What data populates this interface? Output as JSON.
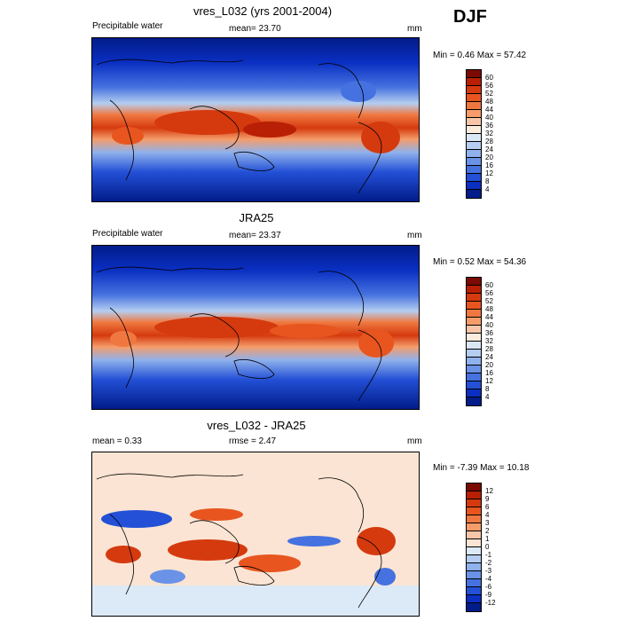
{
  "season": "DJF",
  "panels": [
    {
      "title": "vres_L032 (yrs 2001-2004)",
      "left_label": "Precipitable water",
      "center_label": "mean=  23.70",
      "units": "mm",
      "minmax": "Min =   0.46 Max =  57.42",
      "colorbar": {
        "labels": [
          "60",
          "56",
          "52",
          "48",
          "44",
          "40",
          "36",
          "32",
          "28",
          "24",
          "20",
          "16",
          "12",
          "8",
          "4"
        ],
        "colors": [
          "#7a0a02",
          "#b81f05",
          "#d53a0e",
          "#e8551f",
          "#f07840",
          "#f59c6a",
          "#f7c6a8",
          "#fbecde",
          "#dae7f5",
          "#b5cdf0",
          "#8fb1ec",
          "#6a92e6",
          "#4572e0",
          "#2350d6",
          "#0a2fc2",
          "#021c8a"
        ]
      }
    },
    {
      "title": "JRA25",
      "left_label": "Precipitable water",
      "center_label": "mean=  23.37",
      "units": "mm",
      "minmax": "Min =   0.52 Max =  54.36",
      "colorbar": {
        "labels": [
          "60",
          "56",
          "52",
          "48",
          "44",
          "40",
          "36",
          "32",
          "28",
          "24",
          "20",
          "16",
          "12",
          "8",
          "4"
        ],
        "colors": [
          "#7a0a02",
          "#b81f05",
          "#d53a0e",
          "#e8551f",
          "#f07840",
          "#f59c6a",
          "#f7c6a8",
          "#fbecde",
          "#dae7f5",
          "#b5cdf0",
          "#8fb1ec",
          "#6a92e6",
          "#4572e0",
          "#2350d6",
          "#0a2fc2",
          "#021c8a"
        ]
      }
    },
    {
      "title": "vres_L032 - JRA25",
      "left_label": "mean =   0.33",
      "center_label": "rmse =   2.47",
      "units": "mm",
      "minmax": "Min =  -7.39 Max =  10.18",
      "colorbar": {
        "labels": [
          "12",
          "9",
          "6",
          "4",
          "3",
          "2",
          "1",
          "0",
          "-1",
          "-2",
          "-3",
          "-4",
          "-6",
          "-9",
          "-12"
        ],
        "colors": [
          "#7a0a02",
          "#b81f05",
          "#d53a0e",
          "#e8551f",
          "#f07840",
          "#f59c6a",
          "#f7c6a8",
          "#fbe4d3",
          "#dce9f6",
          "#b5cdf0",
          "#8fb1ec",
          "#6a92e6",
          "#4572e0",
          "#2350d6",
          "#0a2fc2",
          "#021c8a"
        ]
      }
    }
  ]
}
